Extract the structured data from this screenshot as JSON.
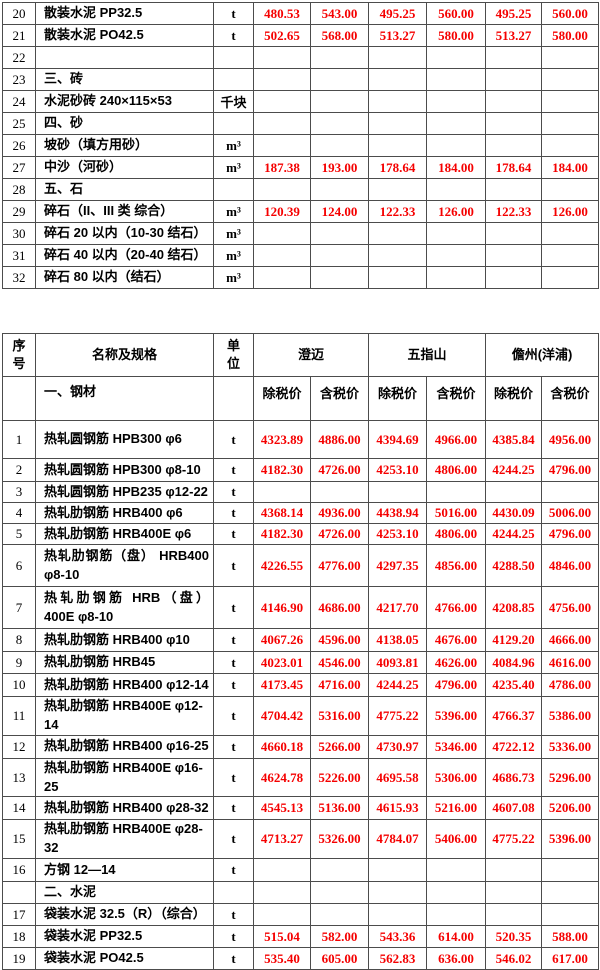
{
  "colors": {
    "price_red": "#f50000",
    "text_black": "#000000",
    "border_gray": "#4c4c4c",
    "page_bg": "#ffffff"
  },
  "top_table": {
    "rows": [
      {
        "no": "20",
        "name": "散装水泥 PP32.5",
        "unit": "t",
        "prices": [
          "480.53",
          "543.00",
          "495.25",
          "560.00",
          "495.25",
          "560.00"
        ]
      },
      {
        "no": "21",
        "name": "散装水泥 PO42.5",
        "unit": "t",
        "prices": [
          "502.65",
          "568.00",
          "513.27",
          "580.00",
          "513.27",
          "580.00"
        ]
      },
      {
        "no": "22",
        "name": "",
        "unit": "",
        "prices": [
          "",
          "",
          "",
          "",
          "",
          ""
        ]
      },
      {
        "no": "23",
        "name": "三、砖",
        "unit": "",
        "prices": [
          "",
          "",
          "",
          "",
          "",
          ""
        ]
      },
      {
        "no": "24",
        "name": "水泥砂砖 240×115×53",
        "unit": "千块",
        "prices": [
          "",
          "",
          "",
          "",
          "",
          ""
        ]
      },
      {
        "no": "25",
        "name": "四、砂",
        "unit": "",
        "prices": [
          "",
          "",
          "",
          "",
          "",
          ""
        ]
      },
      {
        "no": "26",
        "name": "坡砂（填方用砂）",
        "unit": "m³",
        "prices": [
          "",
          "",
          "",
          "",
          "",
          ""
        ]
      },
      {
        "no": "27",
        "name": "中沙（河砂）",
        "unit": "m³",
        "prices": [
          "187.38",
          "193.00",
          "178.64",
          "184.00",
          "178.64",
          "184.00"
        ]
      },
      {
        "no": "28",
        "name": "五、石",
        "unit": "",
        "prices": [
          "",
          "",
          "",
          "",
          "",
          ""
        ]
      },
      {
        "no": "29",
        "name": "碎石（II、III 类 综合）",
        "unit": "m³",
        "prices": [
          "120.39",
          "124.00",
          "122.33",
          "126.00",
          "122.33",
          "126.00"
        ]
      },
      {
        "no": "30",
        "name": "碎石 20 以内（10-30 结石）",
        "unit": "m³",
        "prices": [
          "",
          "",
          "",
          "",
          "",
          ""
        ]
      },
      {
        "no": "31",
        "name": "碎石 40 以内（20-40 结石）",
        "unit": "m³",
        "prices": [
          "",
          "",
          "",
          "",
          "",
          ""
        ]
      },
      {
        "no": "32",
        "name": "碎石 80 以内（结石）",
        "unit": "m³",
        "prices": [
          "",
          "",
          "",
          "",
          "",
          ""
        ]
      }
    ]
  },
  "main_table": {
    "header": {
      "seq": "序\n号",
      "name": "名称及规格",
      "unit": "单\n位",
      "cities": [
        "澄迈",
        "五指山",
        "儋州(洋浦)"
      ],
      "sub": [
        "除税价",
        "含税价"
      ]
    },
    "section_steel": "一、钢材",
    "rows": [
      {
        "no": "1",
        "name": "热轧圆钢筋 HPB300 φ6",
        "unit": "t",
        "prices": [
          "4323.89",
          "4886.00",
          "4394.69",
          "4966.00",
          "4385.84",
          "4956.00"
        ]
      },
      {
        "no": "2",
        "name": "热轧圆钢筋 HPB300 φ8-10",
        "unit": "t",
        "prices": [
          "4182.30",
          "4726.00",
          "4253.10",
          "4806.00",
          "4244.25",
          "4796.00"
        ]
      },
      {
        "no": "3",
        "name": "热轧圆钢筋 HPB235 φ12-22",
        "unit": "t",
        "prices": [
          "",
          "",
          "",
          "",
          "",
          ""
        ]
      },
      {
        "no": "4",
        "name": "热轧肋钢筋 HRB400 φ6",
        "unit": "t",
        "prices": [
          "4368.14",
          "4936.00",
          "4438.94",
          "5016.00",
          "4430.09",
          "5006.00"
        ]
      },
      {
        "no": "5",
        "name": "热轧肋钢筋 HRB400E φ6",
        "unit": "t",
        "prices": [
          "4182.30",
          "4726.00",
          "4253.10",
          "4806.00",
          "4244.25",
          "4796.00"
        ]
      },
      {
        "no": "6",
        "name": "热轧肋钢筋（盘） HRB400 φ8-10",
        "unit": "t",
        "prices": [
          "4226.55",
          "4776.00",
          "4297.35",
          "4856.00",
          "4288.50",
          "4846.00"
        ]
      },
      {
        "no": "7",
        "name": "热轧肋钢筋 HRB（盘）400E φ8-10",
        "unit": "t",
        "prices": [
          "4146.90",
          "4686.00",
          "4217.70",
          "4766.00",
          "4208.85",
          "4756.00"
        ]
      },
      {
        "no": "8",
        "name": "热轧肋钢筋 HRB400 φ10",
        "unit": "t",
        "prices": [
          "4067.26",
          "4596.00",
          "4138.05",
          "4676.00",
          "4129.20",
          "4666.00"
        ]
      },
      {
        "no": "9",
        "name": "热轧肋钢筋 HRB45",
        "unit": "t",
        "prices": [
          "4023.01",
          "4546.00",
          "4093.81",
          "4626.00",
          "4084.96",
          "4616.00"
        ]
      },
      {
        "no": "10",
        "name": "热轧肋钢筋 HRB400 φ12-14",
        "unit": "t",
        "prices": [
          "4173.45",
          "4716.00",
          "4244.25",
          "4796.00",
          "4235.40",
          "4786.00"
        ]
      },
      {
        "no": "11",
        "name": "热轧肋钢筋 HRB400E φ12-14",
        "unit": "t",
        "prices": [
          "4704.42",
          "5316.00",
          "4775.22",
          "5396.00",
          "4766.37",
          "5386.00"
        ]
      },
      {
        "no": "12",
        "name": "热轧肋钢筋 HRB400 φ16-25",
        "unit": "t",
        "prices": [
          "4660.18",
          "5266.00",
          "4730.97",
          "5346.00",
          "4722.12",
          "5336.00"
        ]
      },
      {
        "no": "13",
        "name": "热轧肋钢筋 HRB400E φ16-25",
        "unit": "t",
        "prices": [
          "4624.78",
          "5226.00",
          "4695.58",
          "5306.00",
          "4686.73",
          "5296.00"
        ]
      },
      {
        "no": "14",
        "name": "热轧肋钢筋 HRB400 φ28-32",
        "unit": "t",
        "prices": [
          "4545.13",
          "5136.00",
          "4615.93",
          "5216.00",
          "4607.08",
          "5206.00"
        ]
      },
      {
        "no": "15",
        "name": "热轧肋钢筋 HRB400E φ28-32",
        "unit": "t",
        "prices": [
          "4713.27",
          "5326.00",
          "4784.07",
          "5406.00",
          "4775.22",
          "5396.00"
        ]
      },
      {
        "no": "16",
        "name": "方钢 12—14",
        "unit": "t",
        "prices": [
          "",
          "",
          "",
          "",
          "",
          ""
        ]
      },
      {
        "no": "",
        "name": "二、水泥",
        "unit": "",
        "prices": [
          "",
          "",
          "",
          "",
          "",
          ""
        ]
      },
      {
        "no": "17",
        "name": "袋装水泥 32.5（R）（综合）",
        "unit": "t",
        "prices": [
          "",
          "",
          "",
          "",
          "",
          ""
        ]
      },
      {
        "no": "18",
        "name": "袋装水泥 PP32.5",
        "unit": "t",
        "prices": [
          "515.04",
          "582.00",
          "543.36",
          "614.00",
          "520.35",
          "588.00"
        ]
      },
      {
        "no": "19",
        "name": "袋装水泥 PO42.5",
        "unit": "t",
        "prices": [
          "535.40",
          "605.00",
          "562.83",
          "636.00",
          "546.02",
          "617.00"
        ]
      }
    ]
  }
}
